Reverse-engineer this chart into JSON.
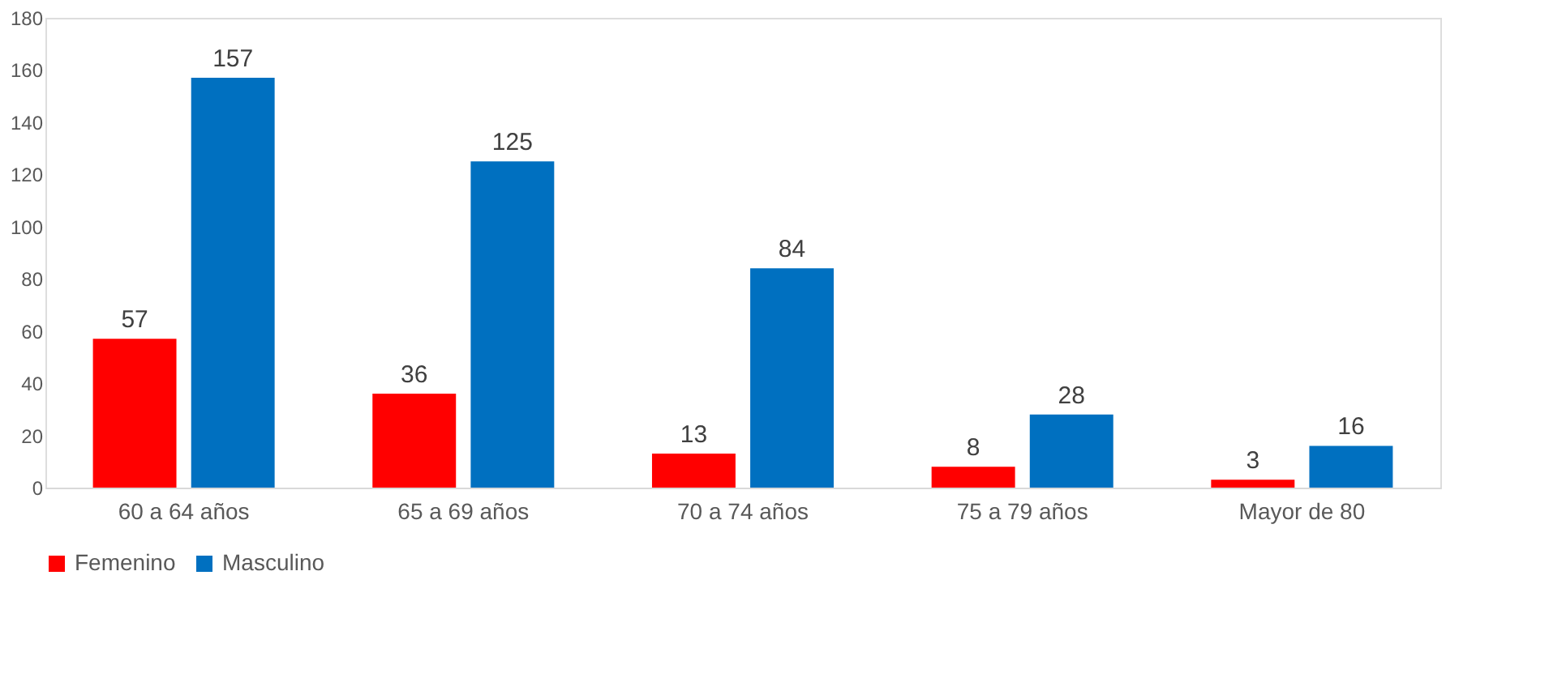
{
  "chart_data": {
    "type": "bar",
    "categories": [
      "60 a 64 años",
      "65 a 69 años",
      "70 a 74 años",
      "75 a 79 años",
      "Mayor de 80"
    ],
    "series": [
      {
        "name": "Femenino",
        "color": "#ff0000",
        "values": [
          57,
          36,
          13,
          8,
          3
        ]
      },
      {
        "name": "Masculino",
        "color": "#0070c0",
        "values": [
          157,
          125,
          84,
          28,
          16
        ]
      }
    ],
    "ylim": [
      0,
      180
    ],
    "yticks": [
      0,
      20,
      40,
      60,
      80,
      100,
      120,
      140,
      160,
      180
    ],
    "grid": false,
    "legend": "bottom",
    "data_labels": true
  }
}
